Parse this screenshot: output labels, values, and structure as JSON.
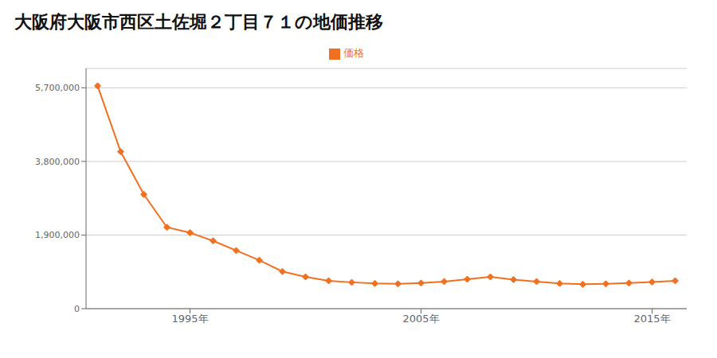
{
  "chart_data": {
    "type": "line",
    "title": "大阪府大阪市西区土佐堀２丁目７１の地価推移",
    "x": [
      1991,
      1992,
      1993,
      1994,
      1995,
      1996,
      1997,
      1998,
      1999,
      2000,
      2001,
      2002,
      2003,
      2004,
      2005,
      2006,
      2007,
      2008,
      2009,
      2010,
      2011,
      2012,
      2013,
      2014,
      2015,
      2016
    ],
    "series": [
      {
        "name": "価格",
        "color": "#f07020",
        "marker": "diamond",
        "values": [
          5750000,
          4050000,
          2950000,
          2100000,
          1960000,
          1750000,
          1500000,
          1250000,
          960000,
          820000,
          720000,
          680000,
          650000,
          640000,
          660000,
          700000,
          760000,
          820000,
          750000,
          700000,
          650000,
          630000,
          640000,
          660000,
          690000,
          720000
        ]
      }
    ],
    "xlim": [
      1990.5,
      2016.5
    ],
    "xticks": [
      {
        "value": 1995,
        "label": "1995年"
      },
      {
        "value": 2005,
        "label": "2005年"
      },
      {
        "value": 2015,
        "label": "2015年"
      }
    ],
    "ylim": [
      0,
      6200000
    ],
    "yticks": [
      0,
      {
        "value": 1900000,
        "label": "1,900,000"
      },
      {
        "value": 3800000,
        "label": "3,800,000"
      },
      {
        "value": 5700000,
        "label": "5,700,000"
      }
    ],
    "grid": "y",
    "legend": "top"
  }
}
